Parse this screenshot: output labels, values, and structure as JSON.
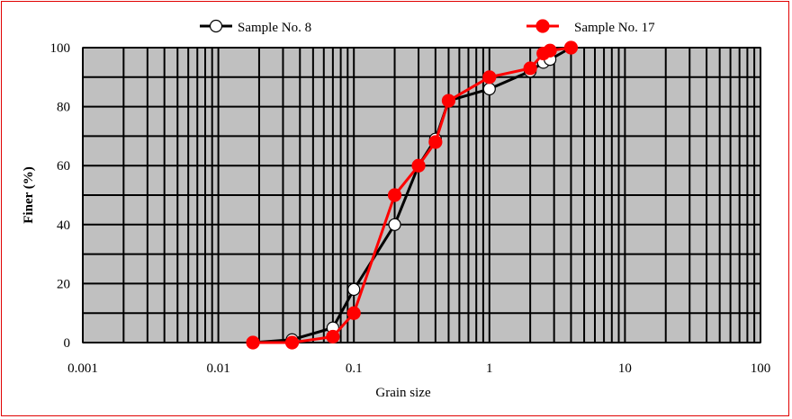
{
  "chart_data": {
    "type": "line",
    "xscale": "log",
    "xlabel": "Grain size",
    "ylabel": "Finer (%)",
    "xlim": [
      0.001,
      100
    ],
    "ylim": [
      0,
      100
    ],
    "xticks": [
      "0.001",
      "0.01",
      "0.1",
      "1",
      "10",
      "100"
    ],
    "yticks": [
      "0",
      "20",
      "40",
      "60",
      "80",
      "100"
    ],
    "grid": true,
    "legend": "top",
    "plot_background": "#c0c0c0",
    "series": [
      {
        "name": "Sample No. 8",
        "color": "#000000",
        "marker": "open-circle",
        "x": [
          0.018,
          0.035,
          0.07,
          0.1,
          0.2,
          0.3,
          0.4,
          0.5,
          1,
          2,
          2.5,
          2.8,
          4
        ],
        "y": [
          0,
          1,
          5,
          18,
          40,
          60,
          69,
          82,
          86,
          92,
          95,
          96,
          100
        ]
      },
      {
        "name": "Sample No. 17",
        "color": "#ff0000",
        "marker": "filled-circle",
        "x": [
          0.018,
          0.035,
          0.07,
          0.1,
          0.2,
          0.3,
          0.4,
          0.5,
          1,
          2,
          2.5,
          2.8,
          4
        ],
        "y": [
          0,
          0,
          2,
          10,
          50,
          60,
          68,
          82,
          90,
          93,
          98,
          99,
          100
        ]
      }
    ]
  }
}
